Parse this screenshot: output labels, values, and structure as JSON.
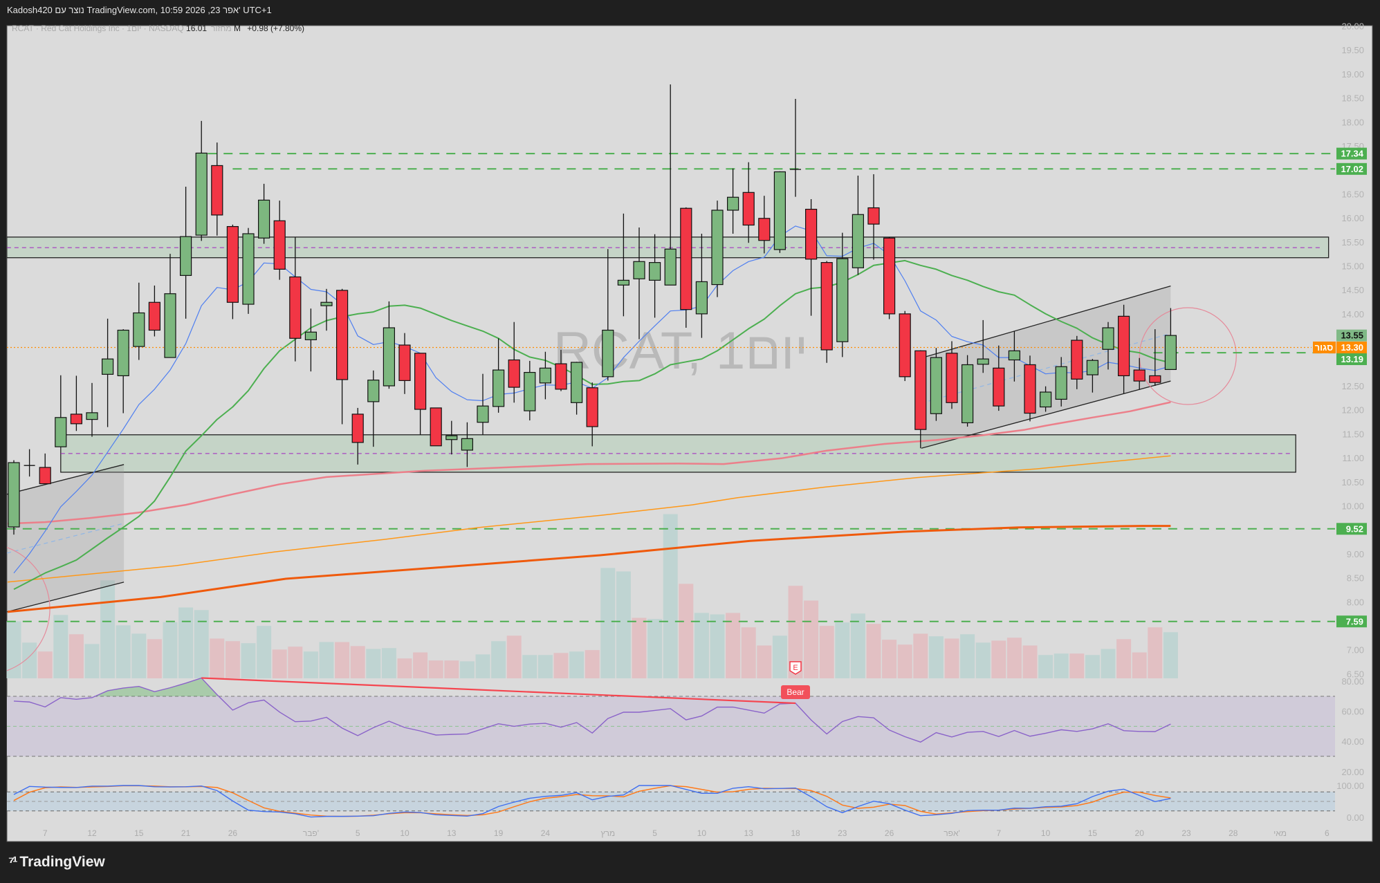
{
  "header": {
    "title": "Kadosh420 נוצר עם TradingView.com, 10:59 2026 ,23 אפר' UTC+1"
  },
  "legend": {
    "symbol_line": "RCAT · Red Cat Holdings Inc · 1יום · NASDAQ",
    "volume_label": "מחזור",
    "volume_value": "16.01 M",
    "change": "+0.98 (+7.80%)"
  },
  "watermark": "RCAT, 1יום",
  "logo": {
    "text": "TradingView"
  },
  "colors": {
    "background": "#dbdbdb",
    "frame": "#1f1f1f",
    "up": "#7db77f",
    "down": "#f23645",
    "vol_up": "#bfd4d2",
    "vol_down": "#e2c0c3",
    "ma_fast": "#4f7ff0",
    "ma_mid": "#4caf50",
    "ma_50": "#ec7f8a",
    "ma_100": "#ff9818",
    "ma_200": "#ef5a0c",
    "level": "#4caf50",
    "rsi": "#8a63c9",
    "stoch_k": "#3f6ff0",
    "stoch_d": "#ff7a1a",
    "close_tag": "#ff8c00"
  },
  "chart_data": {
    "type": "bar",
    "style": "candlestick",
    "symbol": "RCAT",
    "interval": "1D",
    "price_axis": {
      "range": [
        6.5,
        20.0
      ],
      "ticks": [
        "20.00",
        "19.50",
        "19.00",
        "18.50",
        "18.00",
        "17.50",
        "16.50",
        "16.00",
        "15.50",
        "15.00",
        "14.50",
        "14.00",
        "12.50",
        "12.00",
        "11.50",
        "11.00",
        "10.50",
        "10.00",
        "9.00",
        "8.50",
        "8.00",
        "7.00",
        "6.50"
      ]
    },
    "dates": [
      {
        "i": 2,
        "label": "7"
      },
      {
        "i": 5,
        "label": "12"
      },
      {
        "i": 8,
        "label": "15"
      },
      {
        "i": 11,
        "label": "21"
      },
      {
        "i": 14,
        "label": "26"
      },
      {
        "i": 19,
        "label": "פבר'"
      },
      {
        "i": 22,
        "label": "5"
      },
      {
        "i": 25,
        "label": "10"
      },
      {
        "i": 28,
        "label": "13"
      },
      {
        "i": 31,
        "label": "19"
      },
      {
        "i": 34,
        "label": "24"
      },
      {
        "i": 38,
        "label": "מרץ"
      },
      {
        "i": 41,
        "label": "5"
      },
      {
        "i": 44,
        "label": "10"
      },
      {
        "i": 47,
        "label": "13"
      },
      {
        "i": 50,
        "label": "18"
      },
      {
        "i": 53,
        "label": "23"
      },
      {
        "i": 56,
        "label": "26"
      },
      {
        "i": 60,
        "label": "אפר'"
      },
      {
        "i": 63,
        "label": "7"
      },
      {
        "i": 66,
        "label": "10"
      },
      {
        "i": 69,
        "label": "15"
      },
      {
        "i": 72,
        "label": "20"
      },
      {
        "i": 75,
        "label": "23"
      },
      {
        "i": 78,
        "label": "28"
      },
      {
        "i": 81,
        "label": "מאי"
      },
      {
        "i": 84,
        "label": "6"
      }
    ],
    "ohlc": [
      [
        9.56,
        10.95,
        9.4,
        10.9
      ],
      [
        10.82,
        11.18,
        10.61,
        10.84
      ],
      [
        10.8,
        11.09,
        10.46,
        10.46
      ],
      [
        11.23,
        12.72,
        11.23,
        11.84
      ],
      [
        11.91,
        12.71,
        11.56,
        11.71
      ],
      [
        11.8,
        12.56,
        11.44,
        11.94
      ],
      [
        12.74,
        13.9,
        11.64,
        13.06
      ],
      [
        12.71,
        13.68,
        11.93,
        13.66
      ],
      [
        13.32,
        14.65,
        13.04,
        14.02
      ],
      [
        14.24,
        14.59,
        13.53,
        13.66
      ],
      [
        13.09,
        15.25,
        13.09,
        14.42
      ],
      [
        14.8,
        16.65,
        13.9,
        15.61
      ],
      [
        15.64,
        18.02,
        15.52,
        17.35
      ],
      [
        17.09,
        17.57,
        15.63,
        16.06
      ],
      [
        15.82,
        15.86,
        13.89,
        14.24
      ],
      [
        14.2,
        15.79,
        14.0,
        15.67
      ],
      [
        15.58,
        16.71,
        15.46,
        16.37
      ],
      [
        15.94,
        16.36,
        14.71,
        14.93
      ],
      [
        14.77,
        15.59,
        13.01,
        13.49
      ],
      [
        13.46,
        14.11,
        12.8,
        13.62
      ],
      [
        14.17,
        14.52,
        13.65,
        14.24
      ],
      [
        14.49,
        14.52,
        11.7,
        12.63
      ],
      [
        11.91,
        12.04,
        10.86,
        11.32
      ],
      [
        12.17,
        12.82,
        11.23,
        12.62
      ],
      [
        12.5,
        14.26,
        12.44,
        13.71
      ],
      [
        13.35,
        13.6,
        12.33,
        12.61
      ],
      [
        13.18,
        13.18,
        11.48,
        12.01
      ],
      [
        12.04,
        12.04,
        11.25,
        11.25
      ],
      [
        11.38,
        11.77,
        11.07,
        11.46
      ],
      [
        11.16,
        11.74,
        10.81,
        11.4
      ],
      [
        11.74,
        12.75,
        11.48,
        12.08
      ],
      [
        12.07,
        13.49,
        11.94,
        12.83
      ],
      [
        13.04,
        13.83,
        12.15,
        12.47
      ],
      [
        11.98,
        13.02,
        11.78,
        12.78
      ],
      [
        12.56,
        13.21,
        12.22,
        12.87
      ],
      [
        12.96,
        13.25,
        12.39,
        12.43
      ],
      [
        12.15,
        13.0,
        11.9,
        12.99
      ],
      [
        12.46,
        12.57,
        11.24,
        11.65
      ],
      [
        12.69,
        15.35,
        12.61,
        13.66
      ],
      [
        14.6,
        16.09,
        13.95,
        14.7
      ],
      [
        14.73,
        15.8,
        13.47,
        15.09
      ],
      [
        14.7,
        15.66,
        13.92,
        15.07
      ],
      [
        14.6,
        18.78,
        14.6,
        15.35
      ],
      [
        16.2,
        16.22,
        13.71,
        14.09
      ],
      [
        14.0,
        15.67,
        13.5,
        14.67
      ],
      [
        14.61,
        16.36,
        14.35,
        16.16
      ],
      [
        16.16,
        17.03,
        15.67,
        16.43
      ],
      [
        16.53,
        17.16,
        15.48,
        15.85
      ],
      [
        15.99,
        16.46,
        15.26,
        15.53
      ],
      [
        15.34,
        16.97,
        15.27,
        16.96
      ],
      [
        16.99,
        18.48,
        16.44,
        17.01
      ],
      [
        16.18,
        16.39,
        13.96,
        15.14
      ],
      [
        15.07,
        15.1,
        12.98,
        13.25
      ],
      [
        13.42,
        15.69,
        13.1,
        15.15
      ],
      [
        14.96,
        16.88,
        14.81,
        16.07
      ],
      [
        16.21,
        16.91,
        15.13,
        15.87
      ],
      [
        15.58,
        15.6,
        13.89,
        14.0
      ],
      [
        14.0,
        14.06,
        12.6,
        12.69
      ],
      [
        13.23,
        13.24,
        11.2,
        11.59
      ],
      [
        11.92,
        13.29,
        11.77,
        13.09
      ],
      [
        13.18,
        13.43,
        12.02,
        12.15
      ],
      [
        11.73,
        13.14,
        11.65,
        12.94
      ],
      [
        12.95,
        13.87,
        12.77,
        13.06
      ],
      [
        12.87,
        13.34,
        11.98,
        12.08
      ],
      [
        13.04,
        13.64,
        12.59,
        13.23
      ],
      [
        12.94,
        13.13,
        11.76,
        11.93
      ],
      [
        12.06,
        12.49,
        11.96,
        12.37
      ],
      [
        12.22,
        13.1,
        12.07,
        12.9
      ],
      [
        13.45,
        13.54,
        12.43,
        12.64
      ],
      [
        12.73,
        13.06,
        12.36,
        13.03
      ],
      [
        13.26,
        13.83,
        12.84,
        13.71
      ],
      [
        13.95,
        14.19,
        12.34,
        12.71
      ],
      [
        12.83,
        13.08,
        12.42,
        12.6
      ],
      [
        12.71,
        13.68,
        12.5,
        12.57
      ],
      [
        12.84,
        14.12,
        12.84,
        13.55
      ]
    ],
    "volume_m": [
      19.8,
      12.4,
      9.3,
      22.0,
      15.3,
      11.9,
      34.0,
      18.4,
      15.5,
      13.6,
      19.5,
      24.6,
      23.7,
      13.8,
      12.9,
      12.2,
      18.2,
      10.0,
      11.0,
      9.3,
      12.6,
      12.6,
      11.2,
      10.2,
      10.5,
      6.9,
      9.0,
      6.2,
      6.2,
      5.9,
      8.3,
      12.9,
      14.8,
      8.1,
      8.1,
      8.8,
      9.3,
      9.8,
      38.3,
      37.1,
      21.0,
      20.6,
      57.0,
      32.8,
      22.7,
      22.2,
      22.7,
      17.7,
      11.4,
      14.8,
      32.1,
      27.0,
      18.2,
      19.4,
      22.5,
      18.9,
      13.4,
      11.7,
      15.5,
      14.6,
      13.8,
      15.3,
      12.4,
      13.1,
      14.1,
      11.4,
      8.1,
      8.6,
      8.6,
      8.1,
      10.2,
      13.6,
      9.0,
      17.7,
      16.01
    ],
    "volume_dir": "ggrgrggggrgggrrggrrggrrggrrrrgggrggrgrggrggrggrrrgrrrggrrrrgrggrrrggrggrrrg",
    "ma_fast": [
      8.6,
      9.0,
      9.47,
      9.98,
      10.3,
      10.64,
      11.12,
      11.6,
      12.11,
      12.43,
      12.83,
      13.38,
      14.17,
      14.55,
      14.5,
      14.67,
      15.06,
      15.04,
      14.77,
      14.51,
      14.46,
      14.2,
      13.54,
      13.36,
      13.42,
      13.32,
      13.18,
      12.67,
      12.38,
      12.21,
      12.19,
      12.32,
      12.35,
      12.44,
      12.52,
      12.51,
      12.58,
      12.45,
      12.67,
      13.09,
      13.43,
      13.75,
      14.06,
      14.08,
      14.16,
      14.6,
      14.9,
      15.09,
      15.18,
      15.62,
      15.83,
      15.73,
      15.21,
      15.2,
      15.37,
      15.47,
      15.23,
      14.69,
      14.06,
      13.87,
      13.53,
      13.42,
      13.35,
      13.09,
      13.09,
      12.92,
      12.75,
      12.78,
      12.77,
      12.82,
      12.99,
      12.94,
      12.87,
      12.82,
      12.91
    ],
    "ma_mid": [
      8.26,
      8.43,
      8.6,
      8.73,
      8.87,
      9.1,
      9.33,
      9.55,
      9.78,
      10.1,
      10.6,
      11.14,
      11.46,
      11.8,
      12.06,
      12.4,
      12.86,
      13.23,
      13.47,
      13.71,
      13.86,
      13.94,
      14.0,
      14.04,
      14.16,
      14.18,
      14.12,
      13.99,
      13.86,
      13.75,
      13.64,
      13.49,
      13.26,
      13.1,
      13.03,
      12.89,
      12.72,
      12.53,
      12.54,
      12.59,
      12.61,
      12.75,
      12.94,
      13.0,
      13.06,
      13.23,
      13.46,
      13.69,
      13.89,
      14.17,
      14.42,
      14.53,
      14.56,
      14.66,
      14.82,
      15.01,
      15.06,
      15.11,
      15.01,
      14.93,
      14.8,
      14.7,
      14.57,
      14.46,
      14.39,
      14.19,
      14.0,
      13.84,
      13.7,
      13.5,
      13.36,
      13.24,
      13.19,
      13.06,
      12.98
    ],
    "ma_50_points": [
      [
        -0.4,
        9.63
      ],
      [
        2,
        9.66
      ],
      [
        5,
        9.75
      ],
      [
        8,
        9.86
      ],
      [
        11,
        10.02
      ],
      [
        14,
        10.24
      ],
      [
        17,
        10.45
      ],
      [
        20,
        10.6
      ],
      [
        26.3,
        10.73
      ],
      [
        36.7,
        10.87
      ],
      [
        42.5,
        10.88
      ],
      [
        45.4,
        10.87
      ],
      [
        49.1,
        10.99
      ],
      [
        52,
        11.15
      ],
      [
        55.7,
        11.29
      ],
      [
        59,
        11.37
      ],
      [
        61.7,
        11.46
      ],
      [
        64.6,
        11.58
      ],
      [
        66,
        11.67
      ],
      [
        69,
        11.84
      ],
      [
        71.4,
        11.97
      ],
      [
        74,
        12.16
      ]
    ],
    "ma_100_points": [
      [
        -0.4,
        8.41
      ],
      [
        10.3,
        8.75
      ],
      [
        16.7,
        9.04
      ],
      [
        23.7,
        9.3
      ],
      [
        29.8,
        9.55
      ],
      [
        37.5,
        9.8
      ],
      [
        43.4,
        10.02
      ],
      [
        46.3,
        10.17
      ],
      [
        51.9,
        10.39
      ],
      [
        57.8,
        10.59
      ],
      [
        65.4,
        10.77
      ],
      [
        74,
        11.04
      ]
    ],
    "ma_200_points": [
      [
        -0.4,
        7.79
      ],
      [
        9.4,
        8.1
      ],
      [
        17.4,
        8.48
      ],
      [
        28.6,
        8.75
      ],
      [
        37.5,
        8.97
      ],
      [
        47.1,
        9.27
      ],
      [
        56.9,
        9.46
      ],
      [
        64.3,
        9.55
      ],
      [
        72.2,
        9.58
      ],
      [
        74,
        9.58
      ]
    ],
    "zones": [
      {
        "top": 15.6,
        "bottom": 15.17,
        "mid": 15.38,
        "from": -0.45,
        "to": 84.1
      },
      {
        "top": 11.48,
        "bottom": 10.7,
        "mid": 11.09,
        "from": 3.0,
        "to": 82.0
      }
    ],
    "levels": [
      {
        "price": 17.34,
        "from": 12.4,
        "label": "17.34"
      },
      {
        "price": 17.02,
        "from": 14.0,
        "label": "17.02"
      },
      {
        "price": 13.19,
        "from": 72.9,
        "label": "13.19"
      },
      {
        "price": 9.52,
        "from": -0.45,
        "label": "9.52"
      },
      {
        "price": 7.59,
        "from": -0.45,
        "label": "7.59"
      }
    ],
    "channels": [
      {
        "upper": [
          [
            -0.44,
            10.24
          ],
          [
            7.04,
            10.86
          ]
        ],
        "lower": [
          [
            -0.44,
            7.79
          ],
          [
            7.04,
            8.41
          ]
        ]
      },
      {
        "upper": [
          [
            58.05,
            13.08
          ],
          [
            74.0,
            14.58
          ]
        ],
        "lower": [
          [
            58.05,
            11.2
          ],
          [
            74.0,
            12.6
          ]
        ]
      }
    ],
    "circles": [
      {
        "i": 75.1,
        "price": 13.12
      },
      {
        "i": -1.9,
        "price": 7.85
      }
    ],
    "last_price": {
      "value": "13.55"
    },
    "close_tag": {
      "value": "13.30",
      "label": "סגור",
      "price": 13.3
    },
    "rsi": {
      "axis_ticks": [
        "80.00",
        "60.00",
        "40.00",
        "20.00"
      ],
      "upper": 70,
      "middle": 50,
      "lower": 30,
      "values": [
        66.8,
        66.2,
        62.9,
        69.1,
        68,
        69.1,
        73.7,
        75.5,
        76.6,
        73.1,
        75.7,
        78.8,
        82.2,
        71.1,
        60.8,
        65.7,
        67.5,
        59.5,
        53.1,
        53.5,
        56,
        48.8,
        43.8,
        49.1,
        53.4,
        49.2,
        46.9,
        44.2,
        44.6,
        44.9,
        48.3,
        51.7,
        50,
        51.5,
        52,
        49.4,
        52.5,
        45.5,
        55.2,
        59.4,
        59.4,
        60.6,
        61.8,
        54.3,
        56.9,
        62.8,
        62.8,
        60.8,
        58.8,
        64.9,
        65.4,
        54.2,
        44.9,
        53.2,
        56.5,
        55.7,
        47.5,
        43.1,
        39.5,
        45.8,
        42.9,
        46,
        46.6,
        43.2,
        47.2,
        43.4,
        45.4,
        47.7,
        46.6,
        48.3,
        51.7,
        47.1,
        46.6,
        46.5,
        51.5
      ],
      "divergence": {
        "from_i": 12,
        "from_v": 82.2,
        "to_i": 50,
        "to_v": 65.4,
        "label": "Bear"
      }
    },
    "stoch": {
      "axis_ticks": [
        "100.00",
        "0.00"
      ],
      "upper": 80,
      "middle": 50,
      "lower": 20,
      "k": [
        71.7,
        97.1,
        95,
        94,
        93.7,
        98,
        98,
        100,
        100,
        96,
        95.6,
        96,
        98.5,
        84,
        51.4,
        22.5,
        18,
        16.7,
        11,
        1,
        3,
        3,
        3.6,
        5,
        12.3,
        16.7,
        15,
        8,
        5.8,
        3.6,
        11.6,
        34,
        47.8,
        60,
        66,
        69,
        77.5,
        55,
        66,
        70.3,
        100,
        100,
        100,
        87.7,
        75.4,
        75.4,
        91.3,
        96.4,
        89.9,
        90.6,
        92,
        64.5,
        33.3,
        14.5,
        34,
        50.7,
        42.7,
        22.5,
        5,
        8,
        12.3,
        21,
        22.5,
        22.5,
        29,
        28.3,
        33.3,
        34.8,
        42.7,
        65.2,
        81.9,
        88.4,
        68.8,
        49.3,
        59.4
      ],
      "d": [
        52.9,
        79,
        93,
        95.6,
        94,
        95.6,
        97,
        99.3,
        99.3,
        98,
        96,
        96,
        97,
        93.7,
        77,
        53,
        29.7,
        18.8,
        13,
        7.2,
        3.6,
        3,
        3.6,
        6.5,
        11,
        14.5,
        14.5,
        11,
        8,
        5.8,
        8,
        16.7,
        33.3,
        49,
        60,
        65,
        71.7,
        68,
        67.4,
        64.5,
        81.9,
        91.3,
        99.3,
        96.4,
        87.7,
        79,
        80.4,
        87.7,
        91.3,
        90.6,
        90.6,
        84,
        66,
        38.4,
        28.3,
        31.9,
        41.3,
        37,
        18.8,
        10,
        13.8,
        18,
        21,
        22.5,
        26,
        28.3,
        31.2,
        32.6,
        37,
        47.8,
        66,
        79,
        79,
        68.8,
        60.9
      ]
    },
    "earnings_marker": {
      "i": 50,
      "label": "E"
    }
  }
}
